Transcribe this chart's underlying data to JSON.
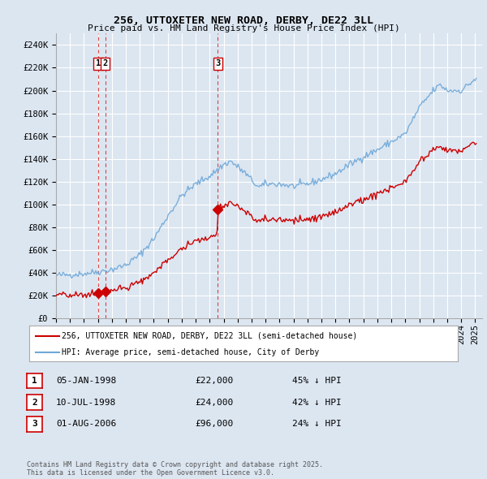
{
  "title": "256, UTTOXETER NEW ROAD, DERBY, DE22 3LL",
  "subtitle": "Price paid vs. HM Land Registry's House Price Index (HPI)",
  "ylim": [
    0,
    250000
  ],
  "yticks": [
    0,
    20000,
    40000,
    60000,
    80000,
    100000,
    120000,
    140000,
    160000,
    180000,
    200000,
    220000,
    240000
  ],
  "ytick_labels": [
    "£0",
    "£20K",
    "£40K",
    "£60K",
    "£80K",
    "£100K",
    "£120K",
    "£140K",
    "£160K",
    "£180K",
    "£200K",
    "£220K",
    "£240K"
  ],
  "xlim_start": 1995.0,
  "xlim_end": 2025.5,
  "background_color": "#dce6f1",
  "plot_bg_color": "#dce6f1",
  "grid_color": "#ffffff",
  "red_line_color": "#cc0000",
  "blue_line_color": "#6fa8d8",
  "transaction_dates": [
    1998.01,
    1998.52,
    2006.58
  ],
  "transaction_prices": [
    22000,
    24000,
    96000
  ],
  "transaction_labels": [
    "1",
    "2",
    "3"
  ],
  "vline_color": "#cc0000",
  "legend_entries": [
    "256, UTTOXETER NEW ROAD, DERBY, DE22 3LL (semi-detached house)",
    "HPI: Average price, semi-detached house, City of Derby"
  ],
  "table_rows": [
    {
      "num": "1",
      "date": "05-JAN-1998",
      "price": "£22,000",
      "pct": "45% ↓ HPI"
    },
    {
      "num": "2",
      "date": "10-JUL-1998",
      "price": "£24,000",
      "pct": "42% ↓ HPI"
    },
    {
      "num": "3",
      "date": "01-AUG-2006",
      "price": "£96,000",
      "pct": "24% ↓ HPI"
    }
  ],
  "footnote": "Contains HM Land Registry data © Crown copyright and database right 2025.\nThis data is licensed under the Open Government Licence v3.0."
}
